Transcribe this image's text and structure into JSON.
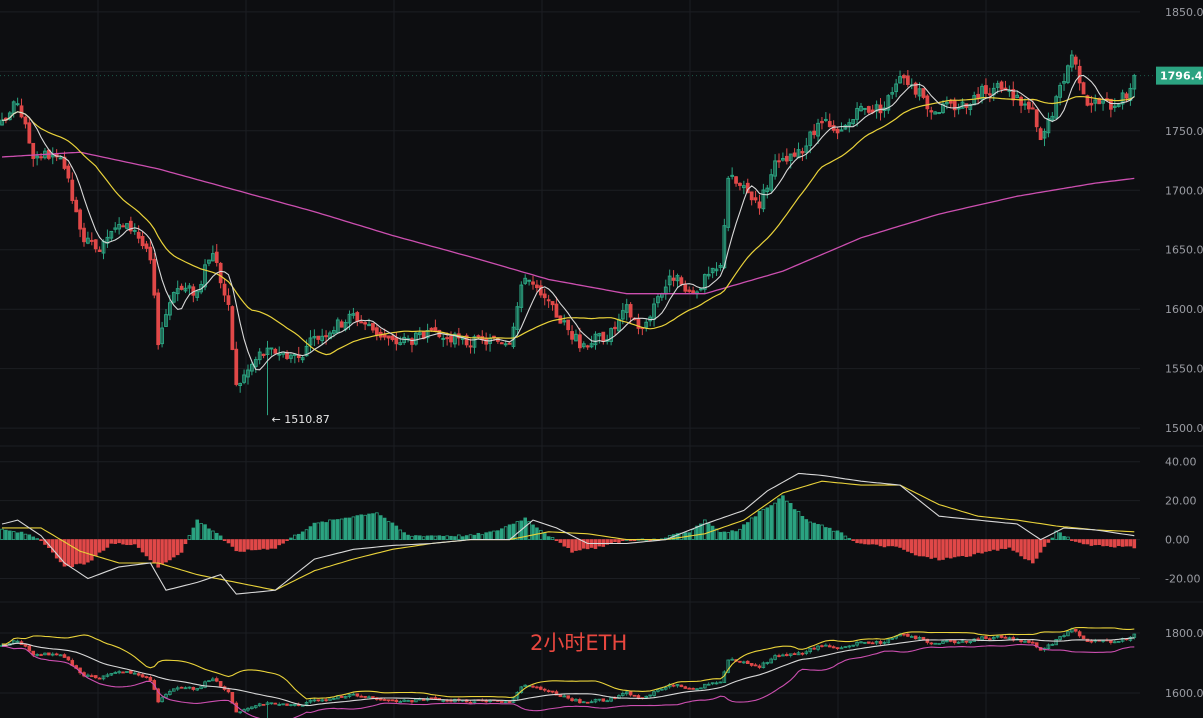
{
  "colors": {
    "background": "#0d0e11",
    "grid": "#1c1e23",
    "up": "#2ba381",
    "down": "#e04848",
    "ma_fast": "#d8d8d8",
    "ma_mid": "#e9d23a",
    "ma_slow": "#cc4fb0",
    "price_tag": "#2ba381",
    "caption": "#e8473f"
  },
  "caption": "2小时ETH",
  "chart_data": [
    {
      "type": "candlestick",
      "ylim": [
        1490,
        1860
      ],
      "y_ticks": [
        1850,
        1800,
        1750,
        1700,
        1650,
        1600,
        1550,
        1500
      ],
      "y_tick_labels": [
        "1850.00",
        "1800.00",
        "1750.00",
        "1700.00",
        "1650.00",
        "1600.00",
        "1550.00",
        "1500.00"
      ],
      "current_price_label": "1796.4",
      "current_price": 1796.4,
      "low_label": "← 1510.87",
      "low_price": 1510.87,
      "close_anchors": [
        [
          0,
          1755
        ],
        [
          4,
          1775
        ],
        [
          8,
          1730
        ],
        [
          12,
          1730
        ],
        [
          16,
          1720
        ],
        [
          20,
          1665
        ],
        [
          24,
          1648
        ],
        [
          28,
          1670
        ],
        [
          34,
          1668
        ],
        [
          38,
          1640
        ],
        [
          40,
          1575
        ],
        [
          44,
          1618
        ],
        [
          50,
          1615
        ],
        [
          54,
          1650
        ],
        [
          58,
          1600
        ],
        [
          60,
          1535
        ],
        [
          66,
          1562
        ],
        [
          70,
          1565
        ],
        [
          76,
          1560
        ],
        [
          80,
          1575
        ],
        [
          90,
          1595
        ],
        [
          100,
          1572
        ],
        [
          110,
          1578
        ],
        [
          120,
          1572
        ],
        [
          130,
          1575
        ],
        [
          134,
          1630
        ],
        [
          138,
          1610
        ],
        [
          142,
          1596
        ],
        [
          148,
          1570
        ],
        [
          152,
          1575
        ],
        [
          156,
          1580
        ],
        [
          160,
          1600
        ],
        [
          164,
          1582
        ],
        [
          168,
          1612
        ],
        [
          172,
          1628
        ],
        [
          176,
          1610
        ],
        [
          180,
          1625
        ],
        [
          184,
          1635
        ],
        [
          186,
          1712
        ],
        [
          190,
          1700
        ],
        [
          194,
          1690
        ],
        [
          198,
          1720
        ],
        [
          204,
          1730
        ],
        [
          210,
          1758
        ],
        [
          214,
          1745
        ],
        [
          220,
          1768
        ],
        [
          226,
          1770
        ],
        [
          230,
          1800
        ],
        [
          234,
          1785
        ],
        [
          238,
          1768
        ],
        [
          246,
          1772
        ],
        [
          252,
          1785
        ],
        [
          256,
          1785
        ],
        [
          260,
          1778
        ],
        [
          264,
          1765
        ],
        [
          266,
          1740
        ],
        [
          270,
          1775
        ],
        [
          274,
          1815
        ],
        [
          278,
          1775
        ],
        [
          284,
          1772
        ],
        [
          288,
          1780
        ],
        [
          290,
          1796.4
        ]
      ],
      "sma_fast_period": 7,
      "sma_mid_period": 25,
      "sma_slow_anchors": [
        [
          0,
          1728
        ],
        [
          20,
          1732
        ],
        [
          40,
          1718
        ],
        [
          60,
          1700
        ],
        [
          80,
          1682
        ],
        [
          100,
          1662
        ],
        [
          120,
          1644
        ],
        [
          140,
          1625
        ],
        [
          160,
          1613
        ],
        [
          180,
          1613
        ],
        [
          200,
          1632
        ],
        [
          220,
          1660
        ],
        [
          240,
          1680
        ],
        [
          260,
          1695
        ],
        [
          280,
          1706
        ],
        [
          290,
          1710
        ]
      ]
    },
    {
      "type": "macd",
      "ylim": [
        -30,
        45
      ],
      "y_ticks": [
        40,
        20,
        0,
        -20
      ],
      "y_tick_labels": [
        "40.00",
        "20.00",
        "0.00",
        "-20.00"
      ],
      "dif_anchors": [
        [
          0,
          8
        ],
        [
          4,
          10
        ],
        [
          10,
          2
        ],
        [
          16,
          -12
        ],
        [
          22,
          -20
        ],
        [
          30,
          -14
        ],
        [
          38,
          -12
        ],
        [
          42,
          -26
        ],
        [
          50,
          -22
        ],
        [
          56,
          -18
        ],
        [
          60,
          -28
        ],
        [
          70,
          -26
        ],
        [
          80,
          -10
        ],
        [
          90,
          -5
        ],
        [
          100,
          -3
        ],
        [
          110,
          -2
        ],
        [
          120,
          0
        ],
        [
          130,
          0
        ],
        [
          136,
          10
        ],
        [
          142,
          6
        ],
        [
          150,
          -2
        ],
        [
          160,
          -2
        ],
        [
          170,
          0
        ],
        [
          180,
          8
        ],
        [
          190,
          15
        ],
        [
          196,
          25
        ],
        [
          204,
          34
        ],
        [
          210,
          33
        ],
        [
          220,
          30
        ],
        [
          230,
          28
        ],
        [
          240,
          12
        ],
        [
          250,
          10
        ],
        [
          260,
          8
        ],
        [
          266,
          0
        ],
        [
          272,
          6
        ],
        [
          280,
          5
        ],
        [
          290,
          2
        ]
      ],
      "dea_anchors": [
        [
          0,
          6
        ],
        [
          10,
          6
        ],
        [
          20,
          -6
        ],
        [
          30,
          -12
        ],
        [
          40,
          -12
        ],
        [
          50,
          -18
        ],
        [
          60,
          -22
        ],
        [
          70,
          -26
        ],
        [
          80,
          -16
        ],
        [
          90,
          -10
        ],
        [
          100,
          -5
        ],
        [
          110,
          -2
        ],
        [
          120,
          0
        ],
        [
          130,
          0
        ],
        [
          140,
          4
        ],
        [
          150,
          3
        ],
        [
          160,
          0
        ],
        [
          170,
          0
        ],
        [
          180,
          3
        ],
        [
          190,
          10
        ],
        [
          200,
          24
        ],
        [
          210,
          30
        ],
        [
          220,
          28
        ],
        [
          230,
          28
        ],
        [
          240,
          18
        ],
        [
          250,
          12
        ],
        [
          260,
          10
        ],
        [
          270,
          7
        ],
        [
          280,
          5
        ],
        [
          290,
          4
        ]
      ],
      "hist_anchors": [
        [
          0,
          5
        ],
        [
          6,
          3
        ],
        [
          10,
          0
        ],
        [
          16,
          -14
        ],
        [
          22,
          -12
        ],
        [
          28,
          -2
        ],
        [
          34,
          -2
        ],
        [
          40,
          -14
        ],
        [
          46,
          -6
        ],
        [
          50,
          10
        ],
        [
          56,
          2
        ],
        [
          60,
          -6
        ],
        [
          70,
          -4
        ],
        [
          80,
          8
        ],
        [
          90,
          12
        ],
        [
          96,
          14
        ],
        [
          104,
          2
        ],
        [
          120,
          2
        ],
        [
          126,
          4
        ],
        [
          134,
          11
        ],
        [
          140,
          2
        ],
        [
          146,
          -6
        ],
        [
          152,
          -4
        ],
        [
          160,
          0
        ],
        [
          168,
          0
        ],
        [
          176,
          4
        ],
        [
          180,
          10
        ],
        [
          184,
          4
        ],
        [
          188,
          4
        ],
        [
          194,
          14
        ],
        [
          200,
          22
        ],
        [
          206,
          10
        ],
        [
          214,
          4
        ],
        [
          220,
          -2
        ],
        [
          230,
          -4
        ],
        [
          234,
          -8
        ],
        [
          240,
          -10
        ],
        [
          248,
          -8
        ],
        [
          258,
          -4
        ],
        [
          264,
          -12
        ],
        [
          270,
          4
        ],
        [
          276,
          -2
        ],
        [
          290,
          -4
        ]
      ],
      "hist_zero_level": 0
    },
    {
      "type": "bollinger-candles",
      "y_ticks": [
        1800,
        1600
      ],
      "y_tick_labels": [
        "1800.00",
        "1600.00"
      ],
      "bb_period": 20,
      "bb_k": 2
    }
  ]
}
